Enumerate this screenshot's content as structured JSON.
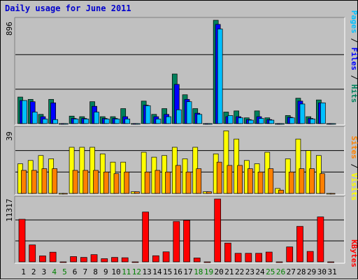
{
  "title": "Daily usage for June 2011",
  "colors": {
    "hits": "#00805c",
    "files": "#0000ff",
    "pages": "#00c0ff",
    "visits": "#ffff00",
    "sites": "#ff8000",
    "kbytes": "#ff0000",
    "weekend_day": "#008000",
    "weekday": "#000000",
    "title": "#0000cc"
  },
  "chart_data": [
    {
      "type": "bar",
      "name": "hits-files-pages",
      "axis_max_label": "896",
      "ylim": [
        0,
        896
      ],
      "legend": [
        "Pages",
        "Files",
        "Hits"
      ],
      "categories": [
        "1",
        "2",
        "3",
        "4",
        "5",
        "6",
        "7",
        "8",
        "9",
        "10",
        "11",
        "12",
        "13",
        "14",
        "15",
        "16",
        "17",
        "18",
        "19",
        "20",
        "21",
        "22",
        "23",
        "24",
        "25",
        "26",
        "27",
        "28",
        "29",
        "30",
        "31"
      ],
      "series": [
        {
          "name": "Hits",
          "values": [
            230,
            210,
            80,
            210,
            0,
            65,
            60,
            190,
            60,
            60,
            130,
            0,
            195,
            80,
            130,
            430,
            250,
            130,
            0,
            896,
            100,
            110,
            50,
            110,
            50,
            0,
            70,
            220,
            60,
            205,
            0
          ]
        },
        {
          "name": "Files",
          "values": [
            200,
            190,
            60,
            180,
            0,
            45,
            45,
            150,
            45,
            45,
            60,
            0,
            160,
            60,
            80,
            340,
            210,
            90,
            0,
            860,
            60,
            60,
            35,
            60,
            35,
            0,
            55,
            195,
            45,
            180,
            0
          ]
        },
        {
          "name": "Pages",
          "values": [
            200,
            100,
            40,
            35,
            0,
            40,
            40,
            100,
            40,
            40,
            40,
            0,
            155,
            40,
            60,
            120,
            190,
            80,
            0,
            820,
            70,
            50,
            30,
            45,
            30,
            0,
            50,
            170,
            40,
            180,
            0
          ]
        }
      ]
    },
    {
      "type": "bar",
      "name": "visits-sites",
      "axis_max_label": "39",
      "ylim": [
        0,
        39
      ],
      "legend": [
        "Sites",
        "Visits"
      ],
      "categories": [
        "1",
        "2",
        "3",
        "4",
        "5",
        "6",
        "7",
        "8",
        "9",
        "10",
        "11",
        "12",
        "13",
        "14",
        "15",
        "16",
        "17",
        "18",
        "19",
        "20",
        "21",
        "22",
        "23",
        "24",
        "25",
        "26",
        "27",
        "28",
        "29",
        "30",
        "31"
      ],
      "series": [
        {
          "name": "Visits",
          "values": [
            18,
            20,
            23,
            21,
            0,
            28,
            28,
            28,
            24,
            19,
            19,
            1,
            25,
            22,
            23,
            28,
            21,
            28,
            1,
            24,
            38,
            33,
            20,
            18,
            25,
            3,
            21,
            33,
            26,
            23,
            0
          ]
        },
        {
          "name": "Sites",
          "values": [
            14,
            14,
            15,
            15,
            0,
            14,
            14,
            14,
            13,
            12,
            13,
            1,
            13,
            14,
            13,
            17,
            13,
            15,
            1,
            19,
            17,
            17,
            15,
            13,
            15,
            2,
            13,
            15,
            15,
            12,
            0
          ]
        }
      ]
    },
    {
      "type": "bar",
      "name": "kbytes",
      "axis_max_label": "11317",
      "ylim": [
        0,
        11317
      ],
      "legend": [
        "KBytes"
      ],
      "categories": [
        "1",
        "2",
        "3",
        "4",
        "5",
        "6",
        "7",
        "8",
        "9",
        "10",
        "11",
        "12",
        "13",
        "14",
        "15",
        "16",
        "17",
        "18",
        "19",
        "20",
        "21",
        "22",
        "23",
        "24",
        "25",
        "26",
        "27",
        "28",
        "29",
        "30",
        "31"
      ],
      "series": [
        {
          "name": "KBytes",
          "values": [
            7670,
            3050,
            1070,
            1740,
            0,
            950,
            800,
            1300,
            570,
            800,
            740,
            0,
            8970,
            1100,
            1800,
            7270,
            7480,
            700,
            0,
            11317,
            3380,
            1540,
            1540,
            1540,
            1760,
            0,
            2690,
            6390,
            1880,
            8090,
            0
          ]
        }
      ]
    }
  ]
}
